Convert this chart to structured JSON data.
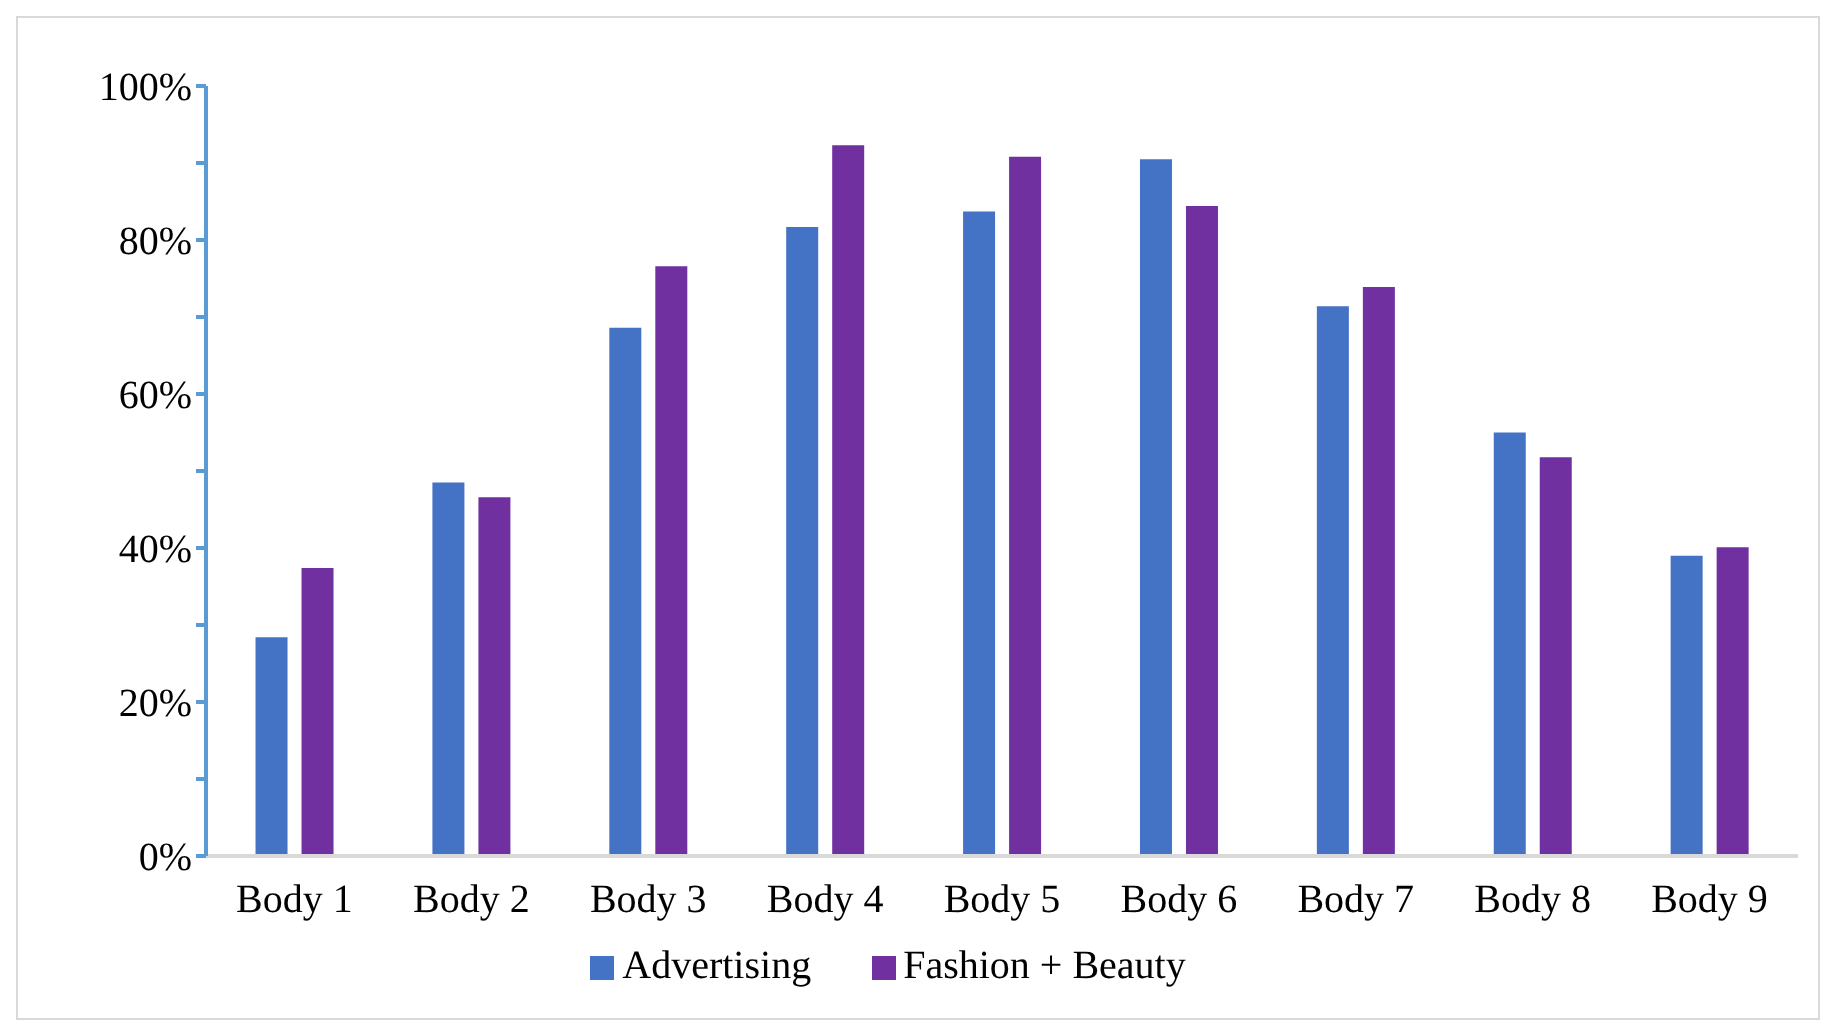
{
  "chart_data": {
    "type": "bar",
    "categories": [
      "Body 1",
      "Body 2",
      "Body 3",
      "Body 4",
      "Body 5",
      "Body 6",
      "Body 7",
      "Body 8",
      "Body 9"
    ],
    "series": [
      {
        "name": "Advertising",
        "color": "#4472c4",
        "values": [
          28.4,
          48.5,
          68.6,
          81.7,
          83.7,
          90.5,
          71.4,
          55.0,
          39.0
        ]
      },
      {
        "name": "Fashion + Beauty",
        "color": "#7030a0",
        "values": [
          37.4,
          46.6,
          76.6,
          92.3,
          90.8,
          84.4,
          73.9,
          51.8,
          40.1
        ]
      }
    ],
    "ylim": [
      0,
      100
    ],
    "yticks": [
      {
        "value": 0,
        "label": "0%"
      },
      {
        "value": 10,
        "label": null
      },
      {
        "value": 20,
        "label": "20%"
      },
      {
        "value": 30,
        "label": null
      },
      {
        "value": 40,
        "label": "40%"
      },
      {
        "value": 50,
        "label": null
      },
      {
        "value": 60,
        "label": "60%"
      },
      {
        "value": 70,
        "label": null
      },
      {
        "value": 80,
        "label": "80%"
      },
      {
        "value": 90,
        "label": null
      },
      {
        "value": 100,
        "label": "100%"
      }
    ],
    "grid": false,
    "legend": "bottom"
  }
}
